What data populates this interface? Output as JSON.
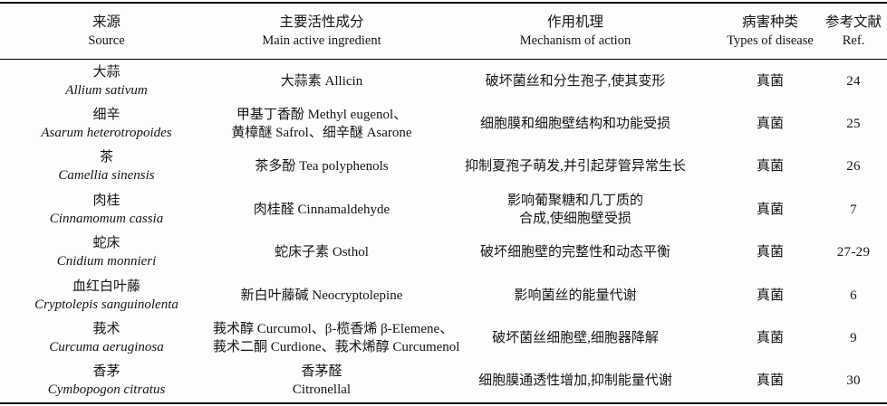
{
  "table": {
    "columns": [
      {
        "zh": "来源",
        "en": "Source"
      },
      {
        "zh": "主要活性成分",
        "en": "Main active ingredient"
      },
      {
        "zh": "作用机理",
        "en": "Mechanism of action"
      },
      {
        "zh": "病害种类",
        "en": "Types of disease"
      },
      {
        "zh": "参考文献",
        "en": "Ref."
      }
    ],
    "rows": [
      {
        "source_zh": "大蒜",
        "source_latin": "Allium sativum",
        "ingredient": [
          "大蒜素 Allicin"
        ],
        "mechanism": [
          "破坏菌丝和分生孢子,使其变形"
        ],
        "disease": "真菌",
        "ref": "24"
      },
      {
        "source_zh": "细辛",
        "source_latin": "Asarum heterotropoides",
        "ingredient": [
          "甲基丁香酚 Methyl eugenol、",
          "黄樟醚 Safrol、细辛醚 Asarone"
        ],
        "mechanism": [
          "细胞膜和细胞壁结构和功能受损"
        ],
        "disease": "真菌",
        "ref": "25"
      },
      {
        "source_zh": "茶",
        "source_latin": "Camellia sinensis",
        "ingredient": [
          "茶多酚 Tea polyphenols"
        ],
        "mechanism": [
          "抑制夏孢子萌发,并引起芽管异常生长"
        ],
        "disease": "真菌",
        "ref": "26"
      },
      {
        "source_zh": "肉桂",
        "source_latin": "Cinnamomum cassia",
        "ingredient": [
          "肉桂醛 Cinnamaldehyde"
        ],
        "mechanism": [
          "影响葡聚糖和几丁质的",
          "合成,使细胞壁受损"
        ],
        "disease": "真菌",
        "ref": "7"
      },
      {
        "source_zh": "蛇床",
        "source_latin": "Cnidium monnieri",
        "ingredient": [
          "蛇床子素 Osthol"
        ],
        "mechanism": [
          "破坏细胞壁的完整性和动态平衡"
        ],
        "disease": "真菌",
        "ref": "27-29"
      },
      {
        "source_zh": "血红白叶藤",
        "source_latin": "Cryptolepis sanguinolenta",
        "ingredient": [
          "新白叶藤碱 Neocryptolepine"
        ],
        "mechanism": [
          "影响菌丝的能量代谢"
        ],
        "disease": "真菌",
        "ref": "6"
      },
      {
        "source_zh": "莪术",
        "source_latin": "Curcuma aeruginosa",
        "ingredient": [
          "莪术醇 Curcumol、β-榄香烯 β-Elemene、",
          "莪术二酮 Curdione、莪术烯醇 Curcumenol"
        ],
        "mechanism": [
          "破坏菌丝细胞壁,细胞器降解"
        ],
        "disease": "真菌",
        "ref": "9"
      },
      {
        "source_zh": "香茅",
        "source_latin": "Cymbopogon citratus",
        "ingredient": [
          "香茅醛",
          "Citronellal"
        ],
        "mechanism": [
          "细胞膜通透性增加,抑制能量代谢"
        ],
        "disease": "真菌",
        "ref": "30"
      }
    ]
  }
}
